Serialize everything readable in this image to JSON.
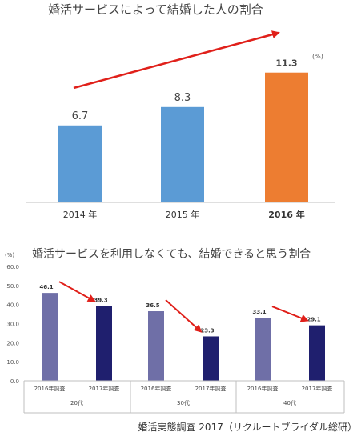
{
  "chart_data": [
    {
      "type": "bar",
      "title": "婚活サービスによって結婚した人の割合",
      "categories": [
        "2014 年",
        "2015 年",
        "2016 年"
      ],
      "values": [
        6.7,
        8.3,
        11.3
      ],
      "value_labels": [
        "6.7",
        "8.3",
        "11.3"
      ],
      "unit": "(%)",
      "ylim": [
        0,
        13.3
      ],
      "grid": false,
      "highlight_category": "2016 年",
      "colors": {
        "normal": "#5b9bd5",
        "highlight": "#ed7d31",
        "arrow": "#e0201a"
      },
      "annotations": [
        "trend-arrow"
      ]
    },
    {
      "type": "bar",
      "title": "婚活サービスを利用しなくても、結婚できると思う割合",
      "unit": "(%)",
      "ylim": [
        0,
        60
      ],
      "yticks": [
        "0.0",
        "10.0",
        "20.0",
        "30.0",
        "40.0",
        "50.0",
        "60.0"
      ],
      "grid": false,
      "groups": [
        {
          "name": "20代",
          "bars": [
            {
              "label": "2016年調査",
              "value": 46.1,
              "value_label": "46.1"
            },
            {
              "label": "2017年調査",
              "value": 39.3,
              "value_label": "39.3"
            }
          ]
        },
        {
          "name": "30代",
          "bars": [
            {
              "label": "2016年調査",
              "value": 36.5,
              "value_label": "36.5"
            },
            {
              "label": "2017年調査",
              "value": 23.3,
              "value_label": "23.3"
            }
          ]
        },
        {
          "name": "40代",
          "bars": [
            {
              "label": "2016年調査",
              "value": 33.1,
              "value_label": "33.1"
            },
            {
              "label": "2017年調査",
              "value": 29.1,
              "value_label": "29.1"
            }
          ]
        }
      ],
      "colors": {
        "y2016": "#6f6fa7",
        "y2017": "#1f1f6e",
        "arrow": "#e0201a"
      }
    }
  ],
  "source": "婚活実態調査 2017（リクルートブライダル総研）"
}
